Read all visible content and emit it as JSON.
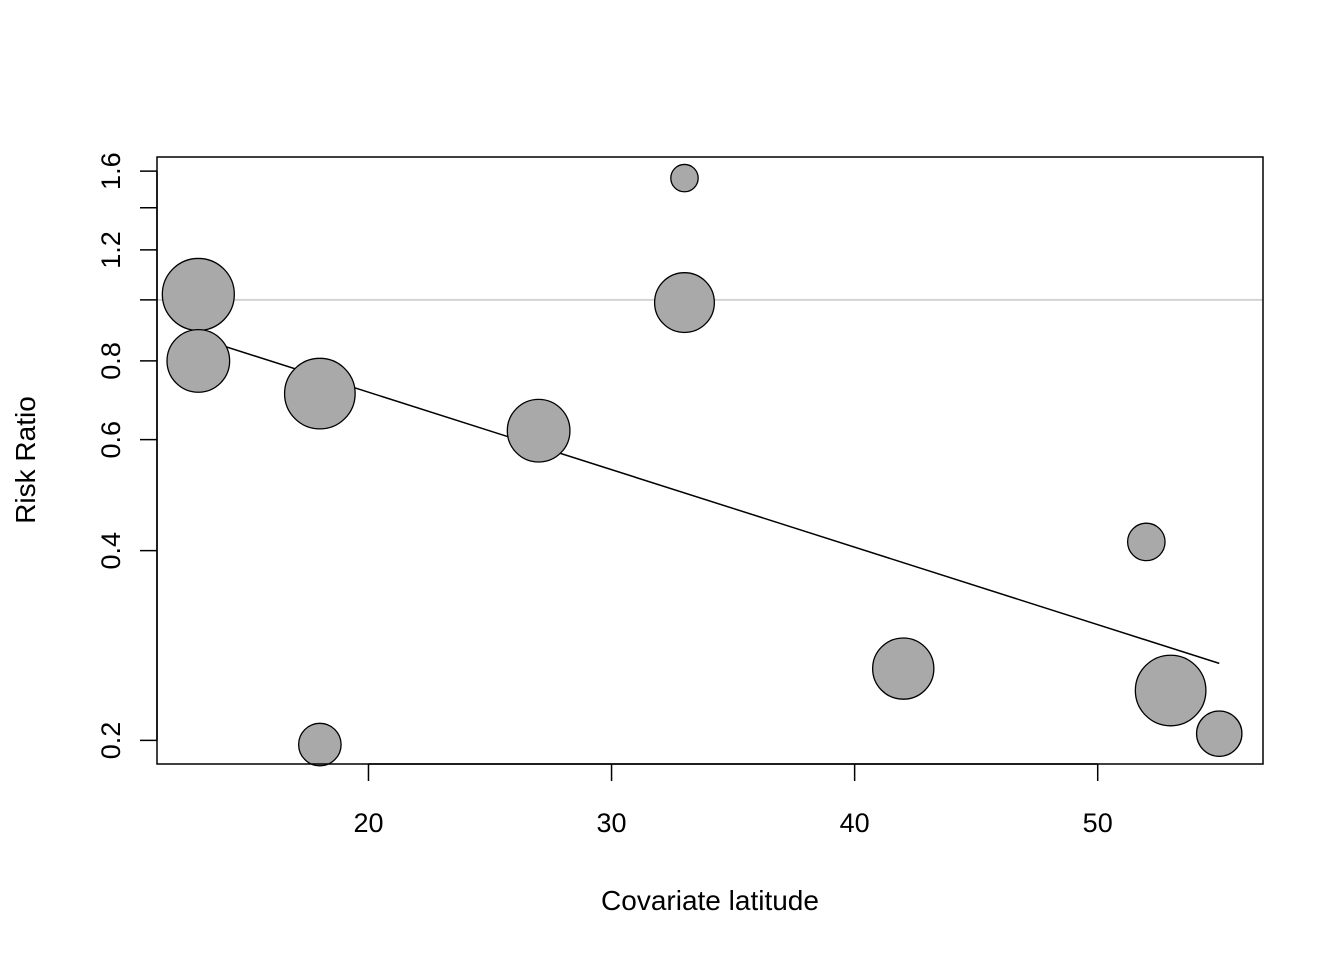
{
  "chart_data": {
    "type": "scatter",
    "title": "",
    "xlabel": "Covariate latitude",
    "ylabel": "Risk Ratio",
    "y_scale": "log",
    "xlim": [
      11.3,
      56.8
    ],
    "ylim": [
      0.1835,
      1.685
    ],
    "x_ticks": [
      20,
      30,
      40,
      50
    ],
    "y_ticks": [
      0.2,
      0.4,
      0.6,
      0.8,
      1.2,
      1.6
    ],
    "y_minor_ticks": [
      1.0,
      1.4
    ],
    "reference_line": {
      "y": 1.0,
      "color": "#d3d3d3"
    },
    "regression_line": {
      "from": [
        13,
        0.87
      ],
      "to": [
        55,
        0.265
      ]
    },
    "point_fill": "#a9a9a9",
    "point_stroke": "#000000",
    "points": [
      {
        "x": 13,
        "y": 1.02,
        "weight": 1.0
      },
      {
        "x": 13,
        "y": 0.8,
        "weight": 0.87
      },
      {
        "x": 18,
        "y": 0.71,
        "weight": 0.98
      },
      {
        "x": 18,
        "y": 0.197,
        "weight": 0.59
      },
      {
        "x": 27,
        "y": 0.62,
        "weight": 0.87
      },
      {
        "x": 33,
        "y": 1.56,
        "weight": 0.38
      },
      {
        "x": 33,
        "y": 0.99,
        "weight": 0.83
      },
      {
        "x": 42,
        "y": 0.26,
        "weight": 0.85
      },
      {
        "x": 52,
        "y": 0.413,
        "weight": 0.52
      },
      {
        "x": 53,
        "y": 0.24,
        "weight": 0.98
      },
      {
        "x": 55,
        "y": 0.205,
        "weight": 0.63
      }
    ]
  }
}
